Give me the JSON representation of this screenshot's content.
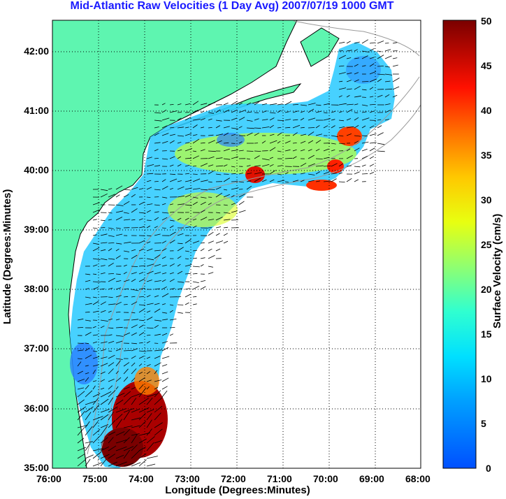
{
  "title": "Mid-Atlantic Raw Velocities (1 Day Avg) 2007/07/19 1000 GMT",
  "map": {
    "xlabel": "Longitude (Degrees:Minutes)",
    "ylabel": "Latitude (Degrees:Minutes)",
    "x_ticks": [
      "76:00",
      "75:00",
      "74:00",
      "73:00",
      "72:00",
      "71:00",
      "70:00",
      "69:00",
      "68:00"
    ],
    "y_ticks": [
      "42:00",
      "41:00",
      "40:00",
      "39:00",
      "38:00",
      "37:00",
      "36:00",
      "35:00"
    ],
    "lon_range_deg_west": [
      76,
      68
    ],
    "lat_range_deg_north": [
      35,
      42.5
    ],
    "grid": "dotted",
    "land_color": "#5ef5b0",
    "contour_color": "#9a9a9a"
  },
  "colorbar": {
    "label": "Surface Velocity (cm/s)",
    "ticks": [
      "50",
      "45",
      "40",
      "35",
      "30",
      "25",
      "20",
      "15",
      "10",
      "5",
      "0"
    ],
    "range": [
      0,
      50
    ],
    "colormap": "jet"
  }
}
